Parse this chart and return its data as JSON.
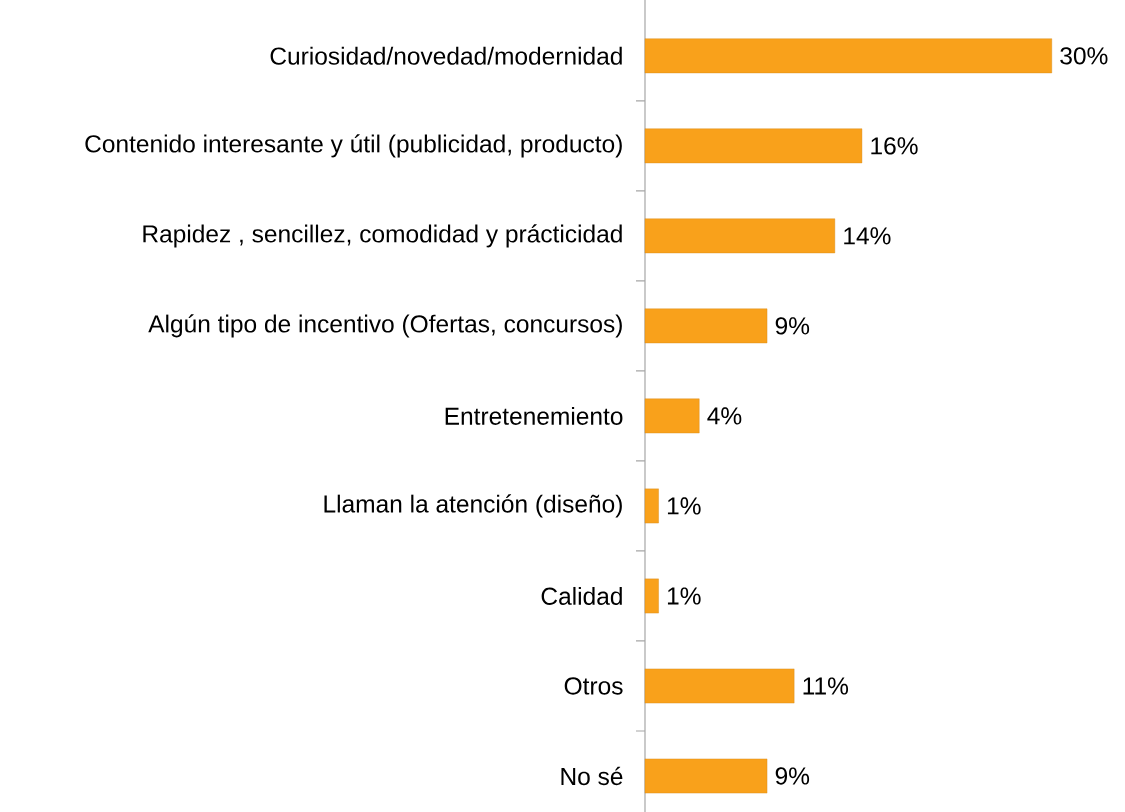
{
  "chart_data": {
    "type": "bar",
    "orientation": "horizontal",
    "categories": [
      "Curiosidad/novedad/modernidad",
      "Contenido interesante y útil (publicidad, producto)",
      "Rapidez , sencillez, comodidad y prácticidad",
      "Algún tipo de incentivo (Ofertas, concursos)",
      "Entretenemiento",
      "Llaman la atención (diseño)",
      "Calidad",
      "Otros",
      "No sé"
    ],
    "values": [
      30,
      16,
      14,
      9,
      4,
      1,
      1,
      11,
      9
    ],
    "value_labels": [
      "30%",
      "16%",
      "14%",
      "9%",
      "4%",
      "1%",
      "1%",
      "11%",
      "9%"
    ],
    "color": "#f9a11b"
  }
}
